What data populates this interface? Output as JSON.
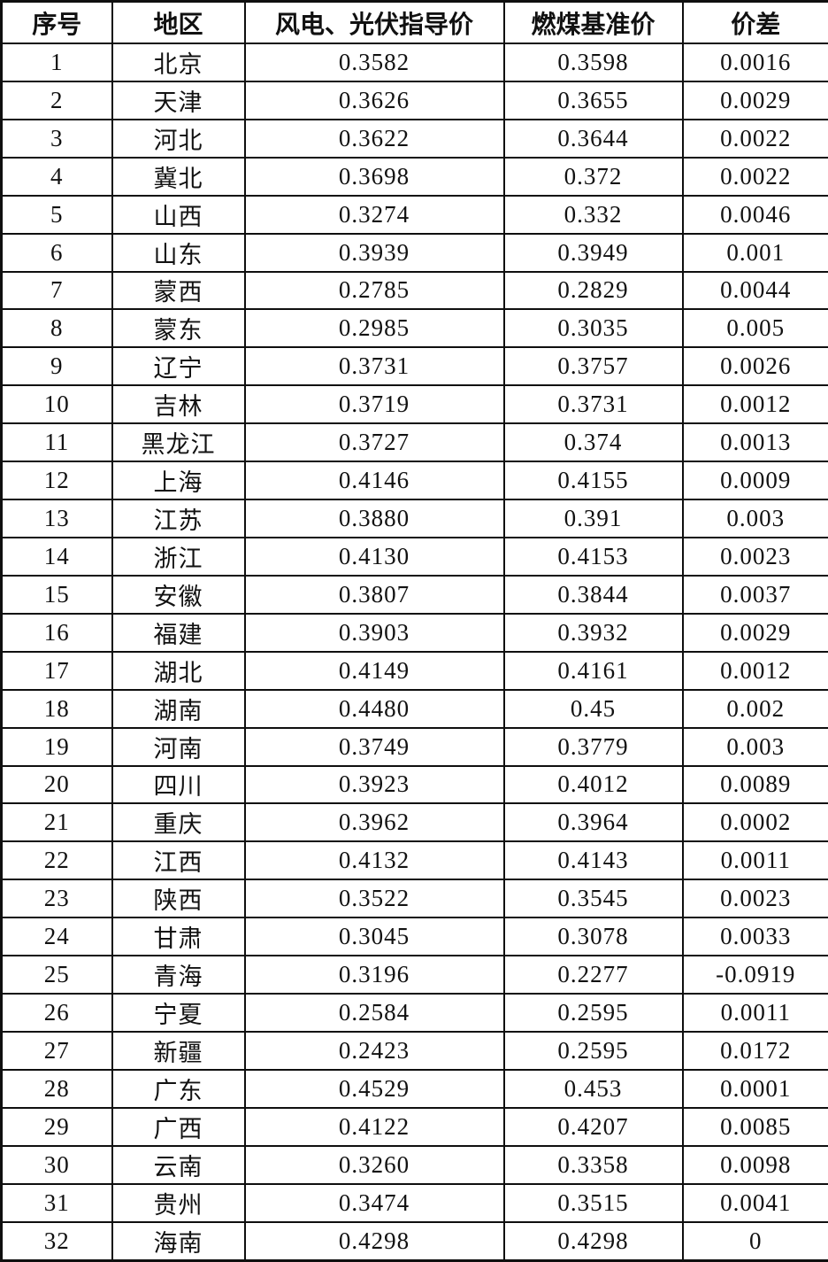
{
  "table": {
    "headers": [
      "序号",
      "地区",
      "风电、光伏指导价",
      "燃煤基准价",
      "价差"
    ],
    "rows": [
      [
        "1",
        "北京",
        "0.3582",
        "0.3598",
        "0.0016"
      ],
      [
        "2",
        "天津",
        "0.3626",
        "0.3655",
        "0.0029"
      ],
      [
        "3",
        "河北",
        "0.3622",
        "0.3644",
        "0.0022"
      ],
      [
        "4",
        "冀北",
        "0.3698",
        "0.372",
        "0.0022"
      ],
      [
        "5",
        "山西",
        "0.3274",
        "0.332",
        "0.0046"
      ],
      [
        "6",
        "山东",
        "0.3939",
        "0.3949",
        "0.001"
      ],
      [
        "7",
        "蒙西",
        "0.2785",
        "0.2829",
        "0.0044"
      ],
      [
        "8",
        "蒙东",
        "0.2985",
        "0.3035",
        "0.005"
      ],
      [
        "9",
        "辽宁",
        "0.3731",
        "0.3757",
        "0.0026"
      ],
      [
        "10",
        "吉林",
        "0.3719",
        "0.3731",
        "0.0012"
      ],
      [
        "11",
        "黑龙江",
        "0.3727",
        "0.374",
        "0.0013"
      ],
      [
        "12",
        "上海",
        "0.4146",
        "0.4155",
        "0.0009"
      ],
      [
        "13",
        "江苏",
        "0.3880",
        "0.391",
        "0.003"
      ],
      [
        "14",
        "浙江",
        "0.4130",
        "0.4153",
        "0.0023"
      ],
      [
        "15",
        "安徽",
        "0.3807",
        "0.3844",
        "0.0037"
      ],
      [
        "16",
        "福建",
        "0.3903",
        "0.3932",
        "0.0029"
      ],
      [
        "17",
        "湖北",
        "0.4149",
        "0.4161",
        "0.0012"
      ],
      [
        "18",
        "湖南",
        "0.4480",
        "0.45",
        "0.002"
      ],
      [
        "19",
        "河南",
        "0.3749",
        "0.3779",
        "0.003"
      ],
      [
        "20",
        "四川",
        "0.3923",
        "0.4012",
        "0.0089"
      ],
      [
        "21",
        "重庆",
        "0.3962",
        "0.3964",
        "0.0002"
      ],
      [
        "22",
        "江西",
        "0.4132",
        "0.4143",
        "0.0011"
      ],
      [
        "23",
        "陕西",
        "0.3522",
        "0.3545",
        "0.0023"
      ],
      [
        "24",
        "甘肃",
        "0.3045",
        "0.3078",
        "0.0033"
      ],
      [
        "25",
        "青海",
        "0.3196",
        "0.2277",
        "-0.0919"
      ],
      [
        "26",
        "宁夏",
        "0.2584",
        "0.2595",
        "0.0011"
      ],
      [
        "27",
        "新疆",
        "0.2423",
        "0.2595",
        "0.0172"
      ],
      [
        "28",
        "广东",
        "0.4529",
        "0.453",
        "0.0001"
      ],
      [
        "29",
        "广西",
        "0.4122",
        "0.4207",
        "0.0085"
      ],
      [
        "30",
        "云南",
        "0.3260",
        "0.3358",
        "0.0098"
      ],
      [
        "31",
        "贵州",
        "0.3474",
        "0.3515",
        "0.0041"
      ],
      [
        "32",
        "海南",
        "0.4298",
        "0.4298",
        "0"
      ]
    ]
  }
}
